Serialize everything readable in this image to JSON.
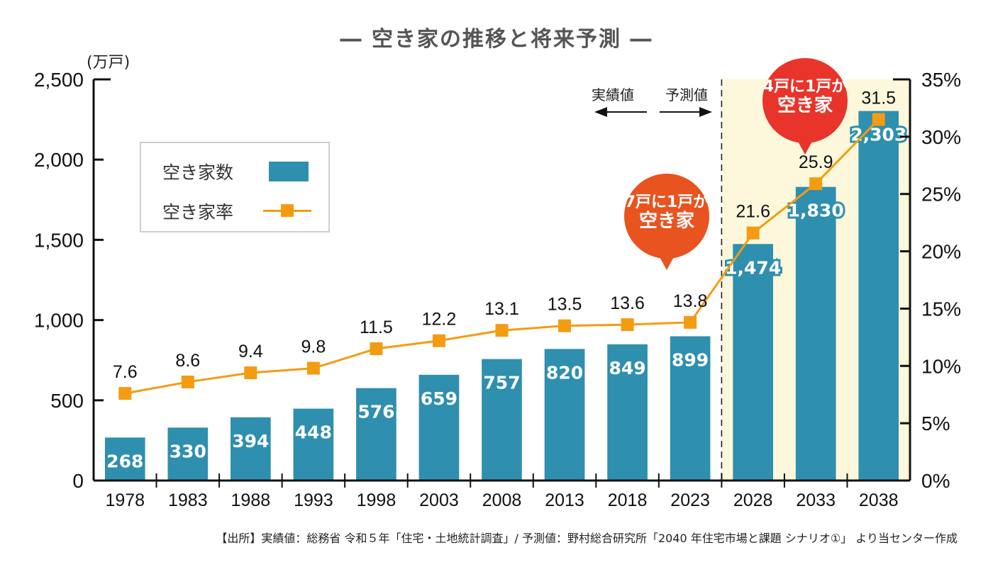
{
  "chart_data": {
    "type": "bar",
    "title": "― 空き家の推移と将来予測 ―",
    "categories": [
      "1978",
      "1983",
      "1988",
      "1993",
      "1998",
      "2003",
      "2008",
      "2013",
      "2018",
      "2023",
      "2028",
      "2033",
      "2038"
    ],
    "series": [
      {
        "name": "空き家数",
        "type": "bar",
        "axis": "left",
        "unit": "万戸",
        "values": [
          268,
          330,
          394,
          448,
          576,
          659,
          757,
          820,
          849,
          899,
          1474,
          1830,
          2303
        ],
        "labels": [
          "268",
          "330",
          "394",
          "448",
          "576",
          "659",
          "757",
          "820",
          "849",
          "899",
          "1,474",
          "1,830",
          "2,303"
        ],
        "color": "#2f8fae"
      },
      {
        "name": "空き家率",
        "type": "line",
        "axis": "right",
        "unit": "%",
        "values": [
          7.6,
          8.6,
          9.4,
          9.8,
          11.5,
          12.2,
          13.1,
          13.5,
          13.6,
          13.8,
          21.6,
          25.9,
          31.5
        ],
        "labels": [
          "7.6",
          "8.6",
          "9.4",
          "9.8",
          "11.5",
          "12.2",
          "13.1",
          "13.5",
          "13.6",
          "13.8",
          "21.6",
          "25.9",
          "31.5"
        ],
        "color": "#f39c12"
      }
    ],
    "ylabel": "(万戸)",
    "ylim": [
      0,
      2500
    ],
    "yticks": [
      "0",
      "500",
      "1,000",
      "1,500",
      "2,000",
      "2,500"
    ],
    "ytick_values": [
      0,
      500,
      1000,
      1500,
      2000,
      2500
    ],
    "y2lim": [
      0,
      35
    ],
    "y2ticks": [
      "0%",
      "5%",
      "10%",
      "15%",
      "20%",
      "25%",
      "30%",
      "35%"
    ],
    "y2tick_values": [
      0,
      5,
      10,
      15,
      20,
      25,
      30,
      35
    ],
    "grid": false,
    "legend_position": "top-left",
    "forecast_start_category": "2028",
    "forecast_shade_color": "#fdf8dc",
    "annotations": {
      "actual_label": "実績値",
      "forecast_label": "予測値",
      "bubble_1": {
        "line1": "7戸に1戸が",
        "line2": "空き家",
        "color": "#e8531f",
        "points_to": "2023"
      },
      "bubble_2": {
        "line1": "4戸に1戸が",
        "line2": "空き家",
        "color": "#e8342a",
        "points_to": "2033"
      }
    }
  },
  "legend": {
    "bar_label": "空き家数",
    "line_label": "空き家率"
  },
  "source": "【出所】実績値：総務省 令和５年「住宅・土地統計調査」/ 予測値：野村総合研究所「2040 年住宅市場と課題 シナリオ①」 より当センター作成"
}
